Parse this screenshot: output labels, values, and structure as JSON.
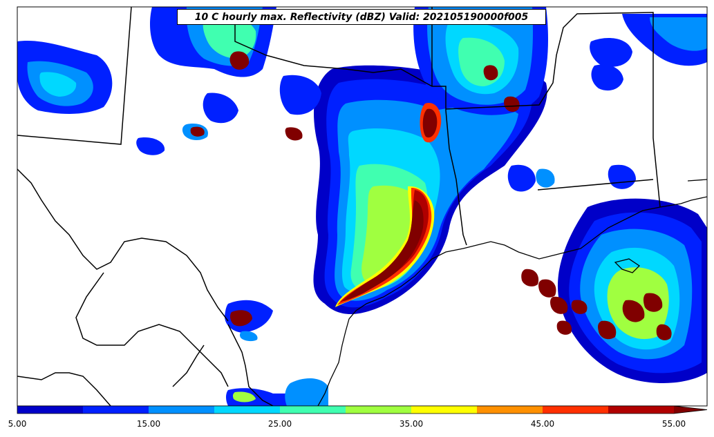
{
  "title": "10 C hourly max. Reflectivity (dBZ) Valid: 202105190000f005",
  "colorbar": {
    "levels": [
      5,
      10,
      15,
      20,
      25,
      30,
      35,
      40,
      45,
      50,
      55
    ],
    "colors": [
      "#0000c8",
      "#0020ff",
      "#0090ff",
      "#00d8ff",
      "#40ffb0",
      "#a0ff40",
      "#ffff00",
      "#ff9000",
      "#ff3000",
      "#b00000"
    ],
    "extend_color": "#800000",
    "tick_labels": [
      "5.00",
      "15.00",
      "25.00",
      "35.00",
      "45.00",
      "55.00"
    ],
    "extend": "max"
  },
  "field_colors": {
    "bg": "#ffffff",
    "border": "#000000"
  }
}
